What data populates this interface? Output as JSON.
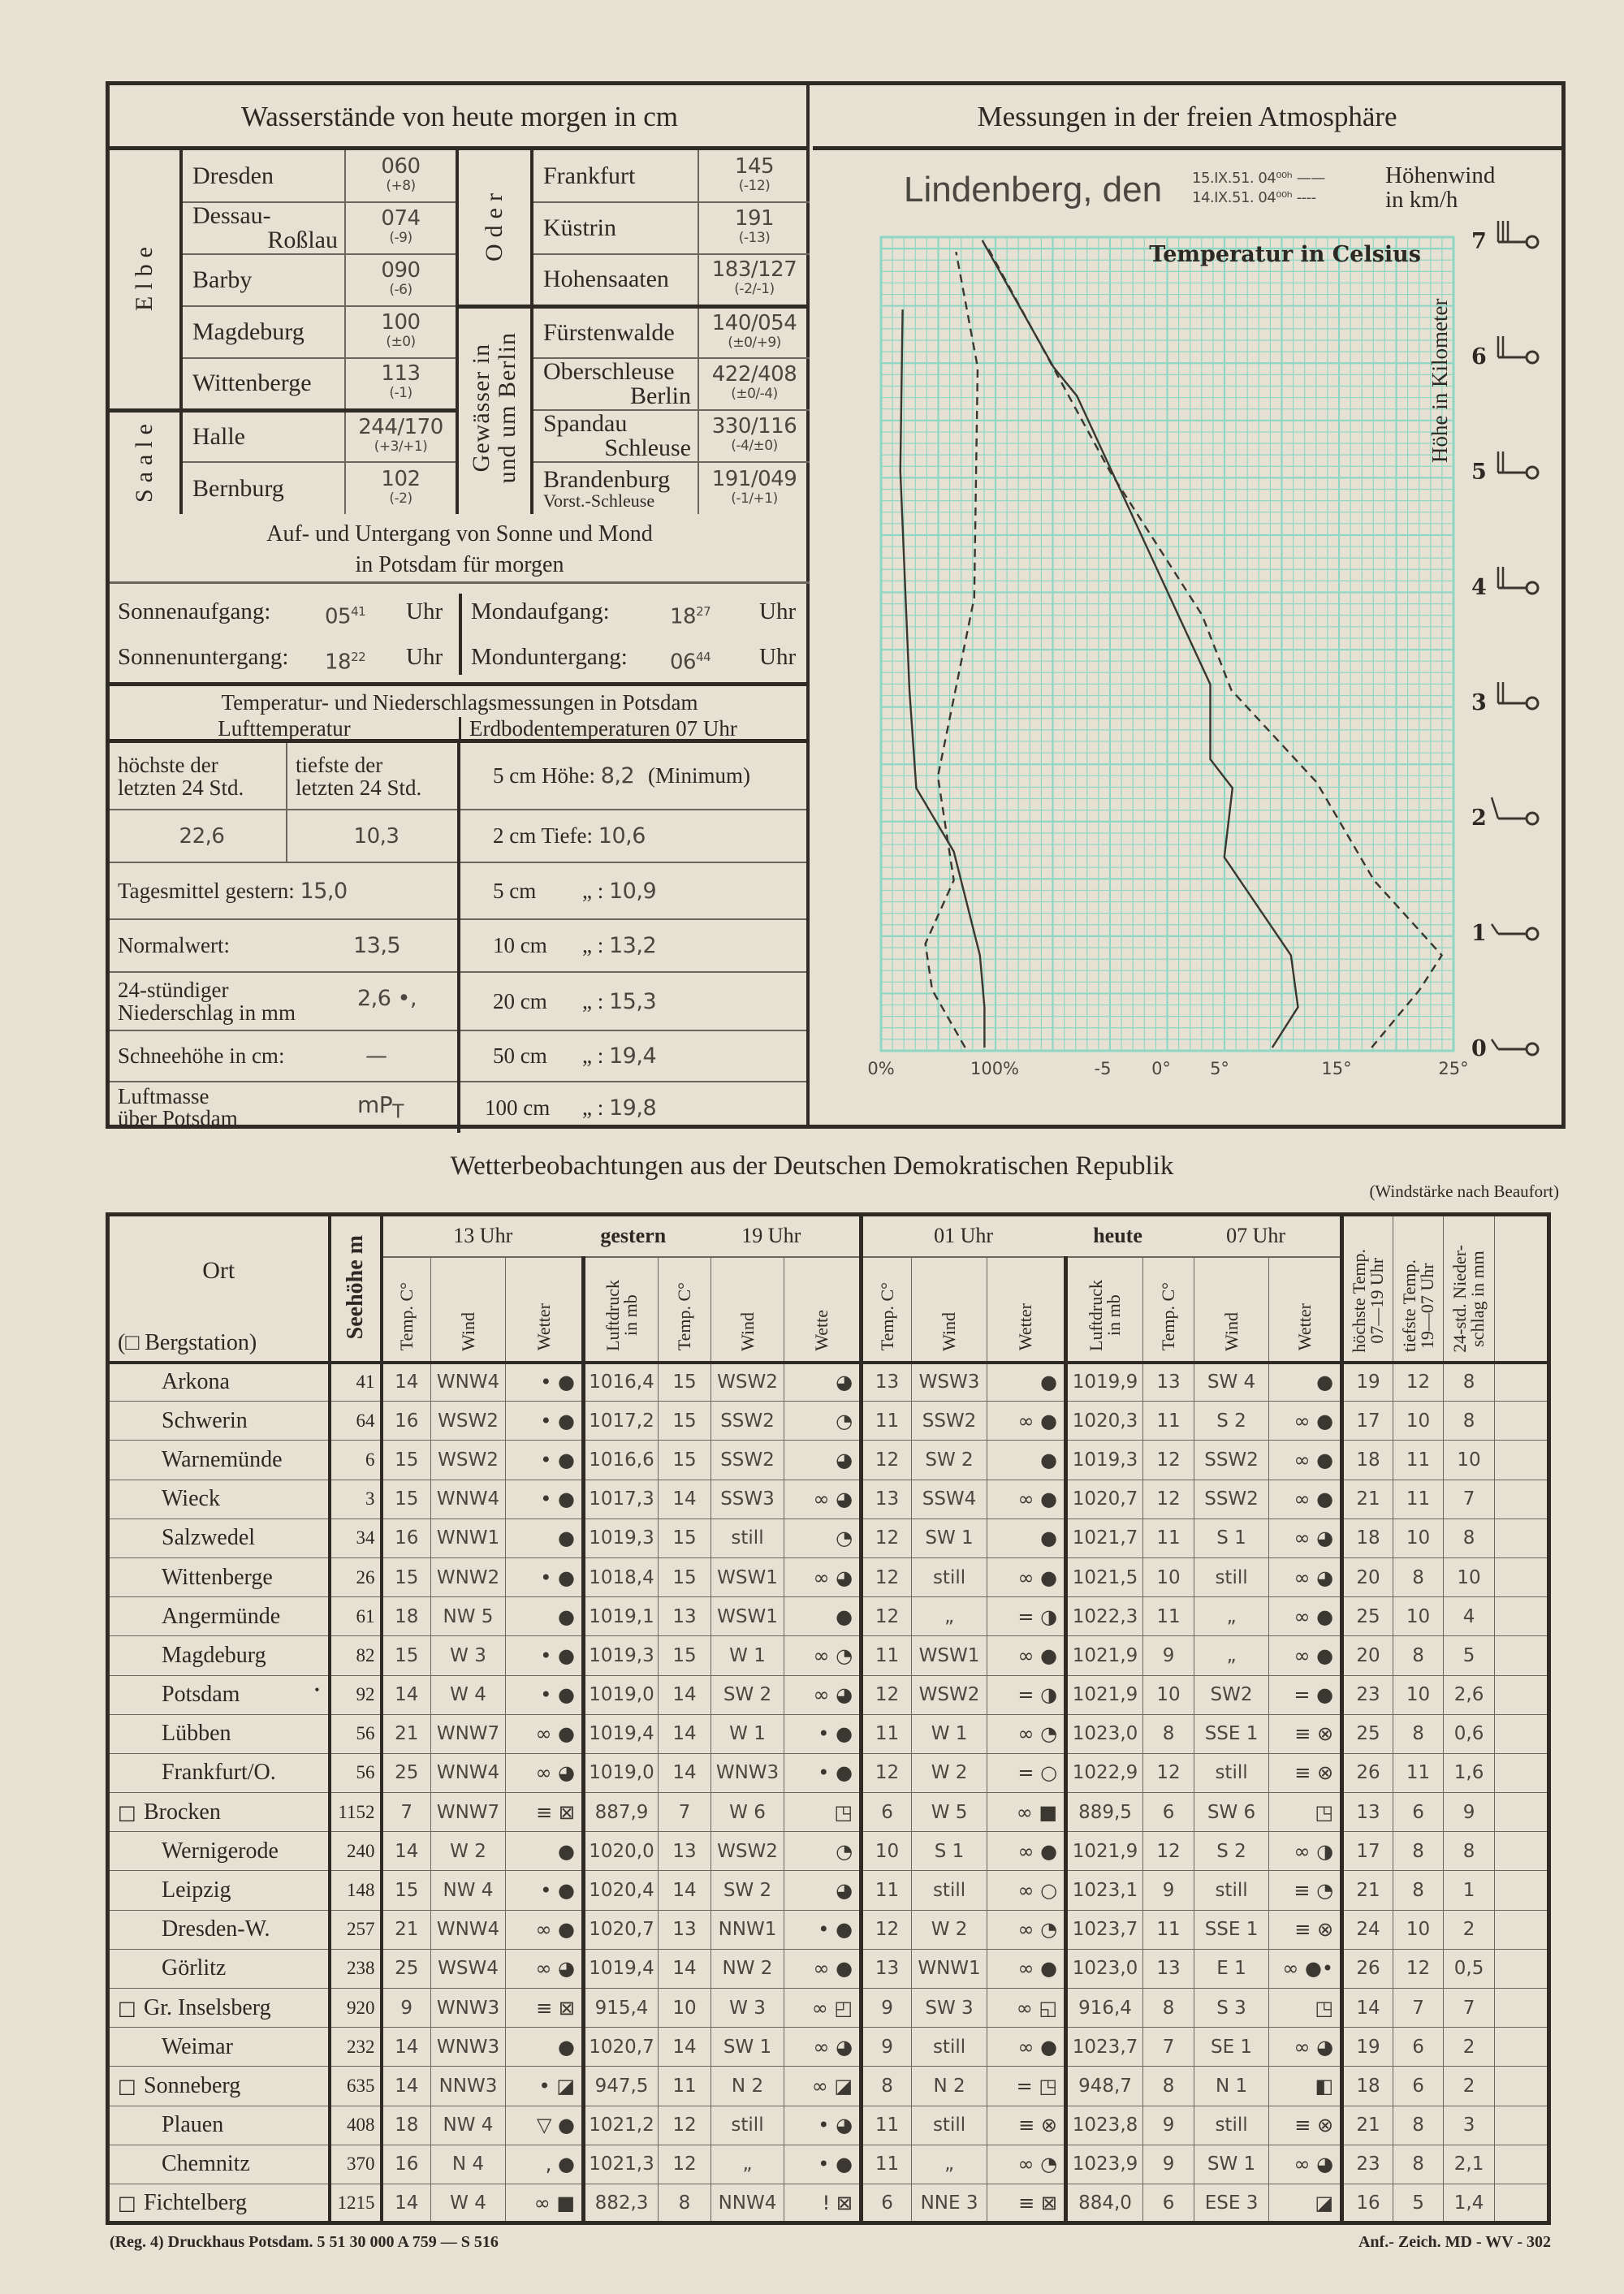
{
  "water_levels": {
    "title": "Wasserstände von heute morgen in cm",
    "left_groups": [
      {
        "river": "Elbe",
        "stations": [
          {
            "name": "Dresden",
            "value": "060",
            "change": "(+8)"
          },
          {
            "name": "Dessau-",
            "name2": "Roßlau",
            "value": "074",
            "change": "(-9)"
          },
          {
            "name": "Barby",
            "value": "090",
            "change": "(-6)"
          },
          {
            "name": "Magdeburg",
            "value": "100",
            "change": "(±0)"
          },
          {
            "name": "Wittenberge",
            "value": "113",
            "change": "(-1)"
          }
        ]
      },
      {
        "river": "Saale",
        "stations": [
          {
            "name": "Halle",
            "value": "244/170",
            "change": "(+3/+1)"
          },
          {
            "name": "Bernburg",
            "value": "102",
            "change": "(-2)"
          }
        ]
      }
    ],
    "right_groups": [
      {
        "river": "Oder",
        "stations": [
          {
            "name": "Frankfurt",
            "value": "145",
            "change": "(-12)"
          },
          {
            "name": "Küstrin",
            "value": "191",
            "change": "(-13)"
          },
          {
            "name": "Hohensaaten",
            "value": "183/127",
            "change": "(-2/-1)"
          }
        ]
      },
      {
        "river": "Gewässer in und um Berlin",
        "river_line1": "Gewässer in",
        "river_line2": "und um Berlin",
        "stations": [
          {
            "name": "Fürstenwalde",
            "value": "140/054",
            "change": "(±0/+9)"
          },
          {
            "name": "Oberschleuse",
            "name2": "Berlin",
            "value": "422/408",
            "change": "(±0/-4)"
          },
          {
            "name": "Spandau",
            "name2": "Schleuse",
            "value": "330/116",
            "change": "(-4/±0)"
          },
          {
            "name": "Brandenburg",
            "name2": "Vorst.-Schleuse",
            "value": "191/049",
            "change": "(-1/+1)"
          }
        ]
      }
    ]
  },
  "sun_moon": {
    "title_line1": "Auf- und Untergang von Sonne und Mond",
    "title_line2": "in Potsdam für morgen",
    "unit": "Uhr",
    "sunrise_label": "Sonnenaufgang:",
    "sunrise_h": "05",
    "sunrise_m": "41",
    "sunset_label": "Sonnenuntergang:",
    "sunset_h": "18",
    "sunset_m": "22",
    "moonrise_label": "Mondaufgang:",
    "moonrise_h": "18",
    "moonrise_m": "27",
    "moonset_label": "Monduntergang:",
    "moonset_h": "06",
    "moonset_m": "44"
  },
  "potsdam": {
    "title": "Temperatur- und Niederschlagsmessungen in Potsdam",
    "air_label": "Lufttemperatur",
    "soil_label": "Erdbodentemperaturen 07 Uhr",
    "max_label_1": "höchste der",
    "max_label_2": "letzten 24 Std.",
    "min_label_1": "tiefste der",
    "min_label_2": "letzten 24 Std.",
    "max_value": "22,6",
    "min_value": "10,3",
    "mean_label": "Tagesmittel gestern:",
    "mean_value": "15,0",
    "normal_label": "Normalwert:",
    "normal_value": "13,5",
    "precip_label_1": "24-stündiger",
    "precip_label_2": "Niederschlag in mm",
    "precip_value": "2,6 •,",
    "snow_label": "Schneehöhe in cm:",
    "snow_value": "—",
    "airmass_label_1": "Luftmasse",
    "airmass_label_2": "über Potsdam",
    "airmass_value": "mP",
    "airmass_sub": "T",
    "soil": [
      {
        "label": "5 cm Höhe:",
        "value": "8,2",
        "suffix": "(Minimum)"
      },
      {
        "label": "2 cm Tiefe:",
        "value": "10,6"
      },
      {
        "label": "5 cm",
        "ditto": "„",
        "value": "10,9"
      },
      {
        "label": "10 cm",
        "ditto": "„",
        "value": "13,2"
      },
      {
        "label": "20 cm",
        "ditto": "„",
        "value": "15,3"
      },
      {
        "label": "50 cm",
        "ditto": "„",
        "value": "19,4"
      },
      {
        "label": "100 cm",
        "ditto": "„",
        "value": "19,8"
      }
    ]
  },
  "atmosphere": {
    "title": "Messungen in der freien Atmosphäre",
    "place": "Lindenberg, den",
    "date_1": "15.IX.51. 04⁰⁰ʰ",
    "date_2": "14.IX.51. 04⁰⁰ʰ",
    "legend_solid": "——",
    "legend_dashed": "----",
    "wind_label_1": "Höhenwind",
    "wind_label_2": "in km/h"
  },
  "chart_data": {
    "type": "line",
    "title": "Temperatur in Celsius",
    "ylabel": "Höhe in Kilometer",
    "y_ticks": [
      "0",
      "1",
      "2",
      "3",
      "4",
      "5",
      "6",
      "7"
    ],
    "ylim": [
      0,
      7
    ],
    "x_tick_labels": [
      {
        "label": "0%",
        "humidity": 0
      },
      {
        "label": "100%",
        "humidity": 100
      },
      {
        "label": "-5",
        "temp": -5
      },
      {
        "label": "0°",
        "temp": 0
      },
      {
        "label": "5°",
        "temp": 5
      },
      {
        "label": "15°",
        "temp": 15
      },
      {
        "label": "25°",
        "temp": 25
      }
    ],
    "grid": true,
    "grid_color": "#8fd6c4",
    "series": [
      {
        "name": "15.IX.51. 04⁰⁰ʰ",
        "quantity": "temperature",
        "style": "solid",
        "points": [
          [
            9.5,
            0
          ],
          [
            11.7,
            0.35
          ],
          [
            11.1,
            0.8
          ],
          [
            5.4,
            1.65
          ],
          [
            6.1,
            2.25
          ],
          [
            4.2,
            2.5
          ],
          [
            4.2,
            3.15
          ],
          [
            -7.2,
            5.65
          ],
          [
            -9.2,
            5.9
          ],
          [
            -15.3,
            7
          ]
        ]
      },
      {
        "name": "14.IX.51. 04⁰⁰ʰ",
        "quantity": "temperature",
        "style": "dashed",
        "points": [
          [
            18,
            0
          ],
          [
            22.1,
            0.5
          ],
          [
            24,
            0.8
          ],
          [
            18.2,
            1.45
          ],
          [
            13.3,
            2.3
          ],
          [
            6,
            3.1
          ],
          [
            3.5,
            3.75
          ],
          [
            -4.4,
            5
          ],
          [
            -14.9,
            6.95
          ]
        ]
      },
      {
        "name": "15.IX.51. 04⁰⁰ʰ",
        "quantity": "humidity",
        "style": "solid",
        "points": [
          [
            91,
            0
          ],
          [
            91,
            0.35
          ],
          [
            87,
            0.8
          ],
          [
            64,
            1.7
          ],
          [
            31,
            2.25
          ],
          [
            25,
            3.1
          ],
          [
            17,
            5
          ],
          [
            19,
            6.4
          ]
        ]
      },
      {
        "name": "14.IX.51. 04⁰⁰ʰ",
        "quantity": "humidity",
        "style": "dashed",
        "points": [
          [
            74,
            0
          ],
          [
            45,
            0.5
          ],
          [
            39,
            0.9
          ],
          [
            64,
            1.45
          ],
          [
            50,
            2.35
          ],
          [
            82,
            3.9
          ],
          [
            85,
            5.9
          ],
          [
            66,
            6.9
          ]
        ]
      }
    ],
    "wind_barbs": [
      {
        "km": 0,
        "feathers": 1
      },
      {
        "km": 1,
        "feathers": 1
      },
      {
        "km": 2,
        "feathers": 1
      },
      {
        "km": 3,
        "feathers": 2
      },
      {
        "km": 4,
        "feathers": 2
      },
      {
        "km": 5,
        "feathers": 2
      },
      {
        "km": 6,
        "feathers": 2
      },
      {
        "km": 7,
        "feathers": 3
      }
    ]
  },
  "observations": {
    "title": "Wetterbeobachtungen aus der Deutschen Demokratischen Republik",
    "note": "(Windstärke nach Beaufort)",
    "headers": {
      "ort": "Ort",
      "bergstation": "(□ Bergstation)",
      "seehoehe": "Seehöhe m",
      "h13": "13 Uhr",
      "gestern": "gestern",
      "h19": "19 Uhr",
      "h01": "01 Uhr",
      "heute": "heute",
      "h07": "07 Uhr",
      "temp": "Temp. C°",
      "wind": "Wind",
      "wetter": "Wetter",
      "wetter_19": "Wette",
      "luftdruck_1": "Luftdruck",
      "luftdruck_2": "in mb",
      "max_1": "höchste Temp.",
      "max_2": "07—19 Uhr",
      "min_1": "tiefste Temp.",
      "min_2": "19—07 Uhr",
      "precip_1": "24-std. Nieder-",
      "precip_2": "schlag in mm"
    },
    "rows": [
      [
        "Arkona",
        "41",
        "14",
        "WNW4",
        "•  ●",
        "1016,4",
        "15",
        "WSW2",
        "◕",
        "13",
        "WSW3",
        "●",
        "1019,9",
        "13",
        "SW 4",
        "●",
        "19",
        "12",
        "8"
      ],
      [
        "Schwerin",
        "64",
        "16",
        "WSW2",
        "•  ●",
        "1017,2",
        "15",
        "SSW2",
        "◔",
        "11",
        "SSW2",
        "∞  ●",
        "1020,3",
        "11",
        "S  2",
        "∞  ●",
        "17",
        "10",
        "8"
      ],
      [
        "Warnemünde",
        "6",
        "15",
        "WSW2",
        "•  ●",
        "1016,6",
        "15",
        "SSW2",
        "◕",
        "12",
        "SW 2",
        "●",
        "1019,3",
        "12",
        "SSW2",
        "∞  ●",
        "18",
        "11",
        "10"
      ],
      [
        "Wieck",
        "3",
        "15",
        "WNW4",
        "•  ●",
        "1017,3",
        "14",
        "SSW3",
        "∞  ◕",
        "13",
        "SSW4",
        "∞  ●",
        "1020,7",
        "12",
        "SSW2",
        "∞  ●",
        "21",
        "11",
        "7"
      ],
      [
        "Salzwedel",
        "34",
        "16",
        "WNW1",
        "●",
        "1019,3",
        "15",
        "still",
        "◔",
        "12",
        "SW 1",
        "●",
        "1021,7",
        "11",
        "S  1",
        "∞  ◕",
        "18",
        "10",
        "8"
      ],
      [
        "Wittenberge",
        "26",
        "15",
        "WNW2",
        "•  ●",
        "1018,4",
        "15",
        "WSW1",
        "∞  ◕",
        "12",
        "still",
        "∞  ●",
        "1021,5",
        "10",
        "still",
        "∞  ◕",
        "20",
        "8",
        "10"
      ],
      [
        "Angermünde",
        "61",
        "18",
        "NW 5",
        "●",
        "1019,1",
        "13",
        "WSW1",
        "●",
        "12",
        "„",
        "=  ◑",
        "1022,3",
        "11",
        "„",
        "∞  ●",
        "25",
        "10",
        "4"
      ],
      [
        "Magdeburg",
        "82",
        "15",
        "W  3",
        "•  ●",
        "1019,3",
        "15",
        "W  1",
        "∞  ◔",
        "11",
        "WSW1",
        "∞  ●",
        "1021,9",
        "9",
        "„",
        "∞  ●",
        "20",
        "8",
        "5"
      ],
      [
        "Potsdam",
        "92",
        "14",
        "W  4",
        "•  ●",
        "1019,0",
        "14",
        "SW 2",
        "∞  ◕",
        "12",
        "WSW2",
        "=  ◑",
        "1021,9",
        "10",
        "SW2",
        "=  ●",
        "23",
        "10",
        "2,6"
      ],
      [
        "Lübben",
        "56",
        "21",
        "WNW7",
        "∞  ●",
        "1019,4",
        "14",
        "W  1",
        "•  ●",
        "11",
        "W  1",
        "∞  ◔",
        "1023,0",
        "8",
        "SSE 1",
        "≡  ⊗",
        "25",
        "8",
        "0,6"
      ],
      [
        "Frankfurt/O.",
        "56",
        "25",
        "WNW4",
        "∞  ◕",
        "1019,0",
        "14",
        "WNW3",
        "•  ●",
        "12",
        "W  2",
        "=  ○",
        "1022,9",
        "12",
        "still",
        "≡  ⊗",
        "26",
        "11",
        "1,6"
      ],
      [
        "Brocken",
        "1152",
        "7",
        "WNW7",
        "≡  ⊠",
        "887,9",
        "7",
        "W  6",
        "◳",
        "6",
        "W  5",
        "∞  ■",
        "889,5",
        "6",
        "SW 6",
        "◳",
        "13",
        "6",
        "9"
      ],
      [
        "Wernigerode",
        "240",
        "14",
        "W  2",
        "●",
        "1020,0",
        "13",
        "WSW2",
        "◔",
        "10",
        "S  1",
        "∞  ●",
        "1021,9",
        "12",
        "S  2",
        "∞  ◑",
        "17",
        "8",
        "8"
      ],
      [
        "Leipzig",
        "148",
        "15",
        "NW 4",
        "•  ●",
        "1020,4",
        "14",
        "SW 2",
        "◕",
        "11",
        "still",
        "∞  ○",
        "1023,1",
        "9",
        "still",
        "≡  ◔",
        "21",
        "8",
        "1"
      ],
      [
        "Dresden-W.",
        "257",
        "21",
        "WNW4",
        "∞  ●",
        "1020,7",
        "13",
        "NNW1",
        "•  ●",
        "12",
        "W  2",
        "∞  ◔",
        "1023,7",
        "11",
        "SSE 1",
        "≡  ⊗",
        "24",
        "10",
        "2"
      ],
      [
        "Görlitz",
        "238",
        "25",
        "WSW4",
        "∞  ◕",
        "1019,4",
        "14",
        "NW 2",
        "∞  ●",
        "13",
        "WNW1",
        "∞  ●",
        "1023,0",
        "13",
        "E  1",
        "∞  ●•",
        "26",
        "12",
        "0,5"
      ],
      [
        "Gr. Inselsberg",
        "920",
        "9",
        "WNW3",
        "≡  ⊠",
        "915,4",
        "10",
        "W  3",
        "∞  ◰",
        "9",
        "SW 3",
        "∞  ◱",
        "916,4",
        "8",
        "S  3",
        "◳",
        "14",
        "7",
        "7"
      ],
      [
        "Weimar",
        "232",
        "14",
        "WNW3",
        "●",
        "1020,7",
        "14",
        "SW 1",
        "∞  ◕",
        "9",
        "still",
        "∞  ●",
        "1023,7",
        "7",
        "SE 1",
        "∞  ◕",
        "19",
        "6",
        "2"
      ],
      [
        "Sonneberg",
        "635",
        "14",
        "NNW3",
        "•  ◪",
        "947,5",
        "11",
        "N  2",
        "∞  ◪",
        "8",
        "N  2",
        "=  ◳",
        "948,7",
        "8",
        "N  1",
        "◧",
        "18",
        "6",
        "2"
      ],
      [
        "Plauen",
        "408",
        "18",
        "NW 4",
        "▽  ●",
        "1021,2",
        "12",
        "still",
        "•  ◕",
        "11",
        "still",
        "≡  ⊗",
        "1023,8",
        "9",
        "still",
        "≡  ⊗",
        "21",
        "8",
        "3"
      ],
      [
        "Chemnitz",
        "370",
        "16",
        "N  4",
        ",  ●",
        "1021,3",
        "12",
        "„",
        "•  ●",
        "11",
        "„",
        "∞  ◔",
        "1023,9",
        "9",
        "SW 1",
        "∞  ◕",
        "23",
        "8",
        "2,1"
      ],
      [
        "Fichtelberg",
        "1215",
        "14",
        "W  4",
        "∞  ■",
        "882,3",
        "8",
        "NNW4",
        "!  ⊠",
        "6",
        "NNE 3",
        "≡  ⊠",
        "884,0",
        "6",
        "ESE 3",
        "◪",
        "16",
        "5",
        "1,4"
      ]
    ],
    "mountain_stations": [
      "Brocken",
      "Gr. Inselsberg",
      "Sonneberg",
      "Fichtelberg"
    ],
    "mountain_marker": "□",
    "potsdam_marker": "•"
  },
  "footer": {
    "left": "(Reg. 4) Druckhaus Potsdam.   5 51 30 000 A 759 — S 516",
    "right": "Anf.- Zeich. MD - WV - 302"
  }
}
